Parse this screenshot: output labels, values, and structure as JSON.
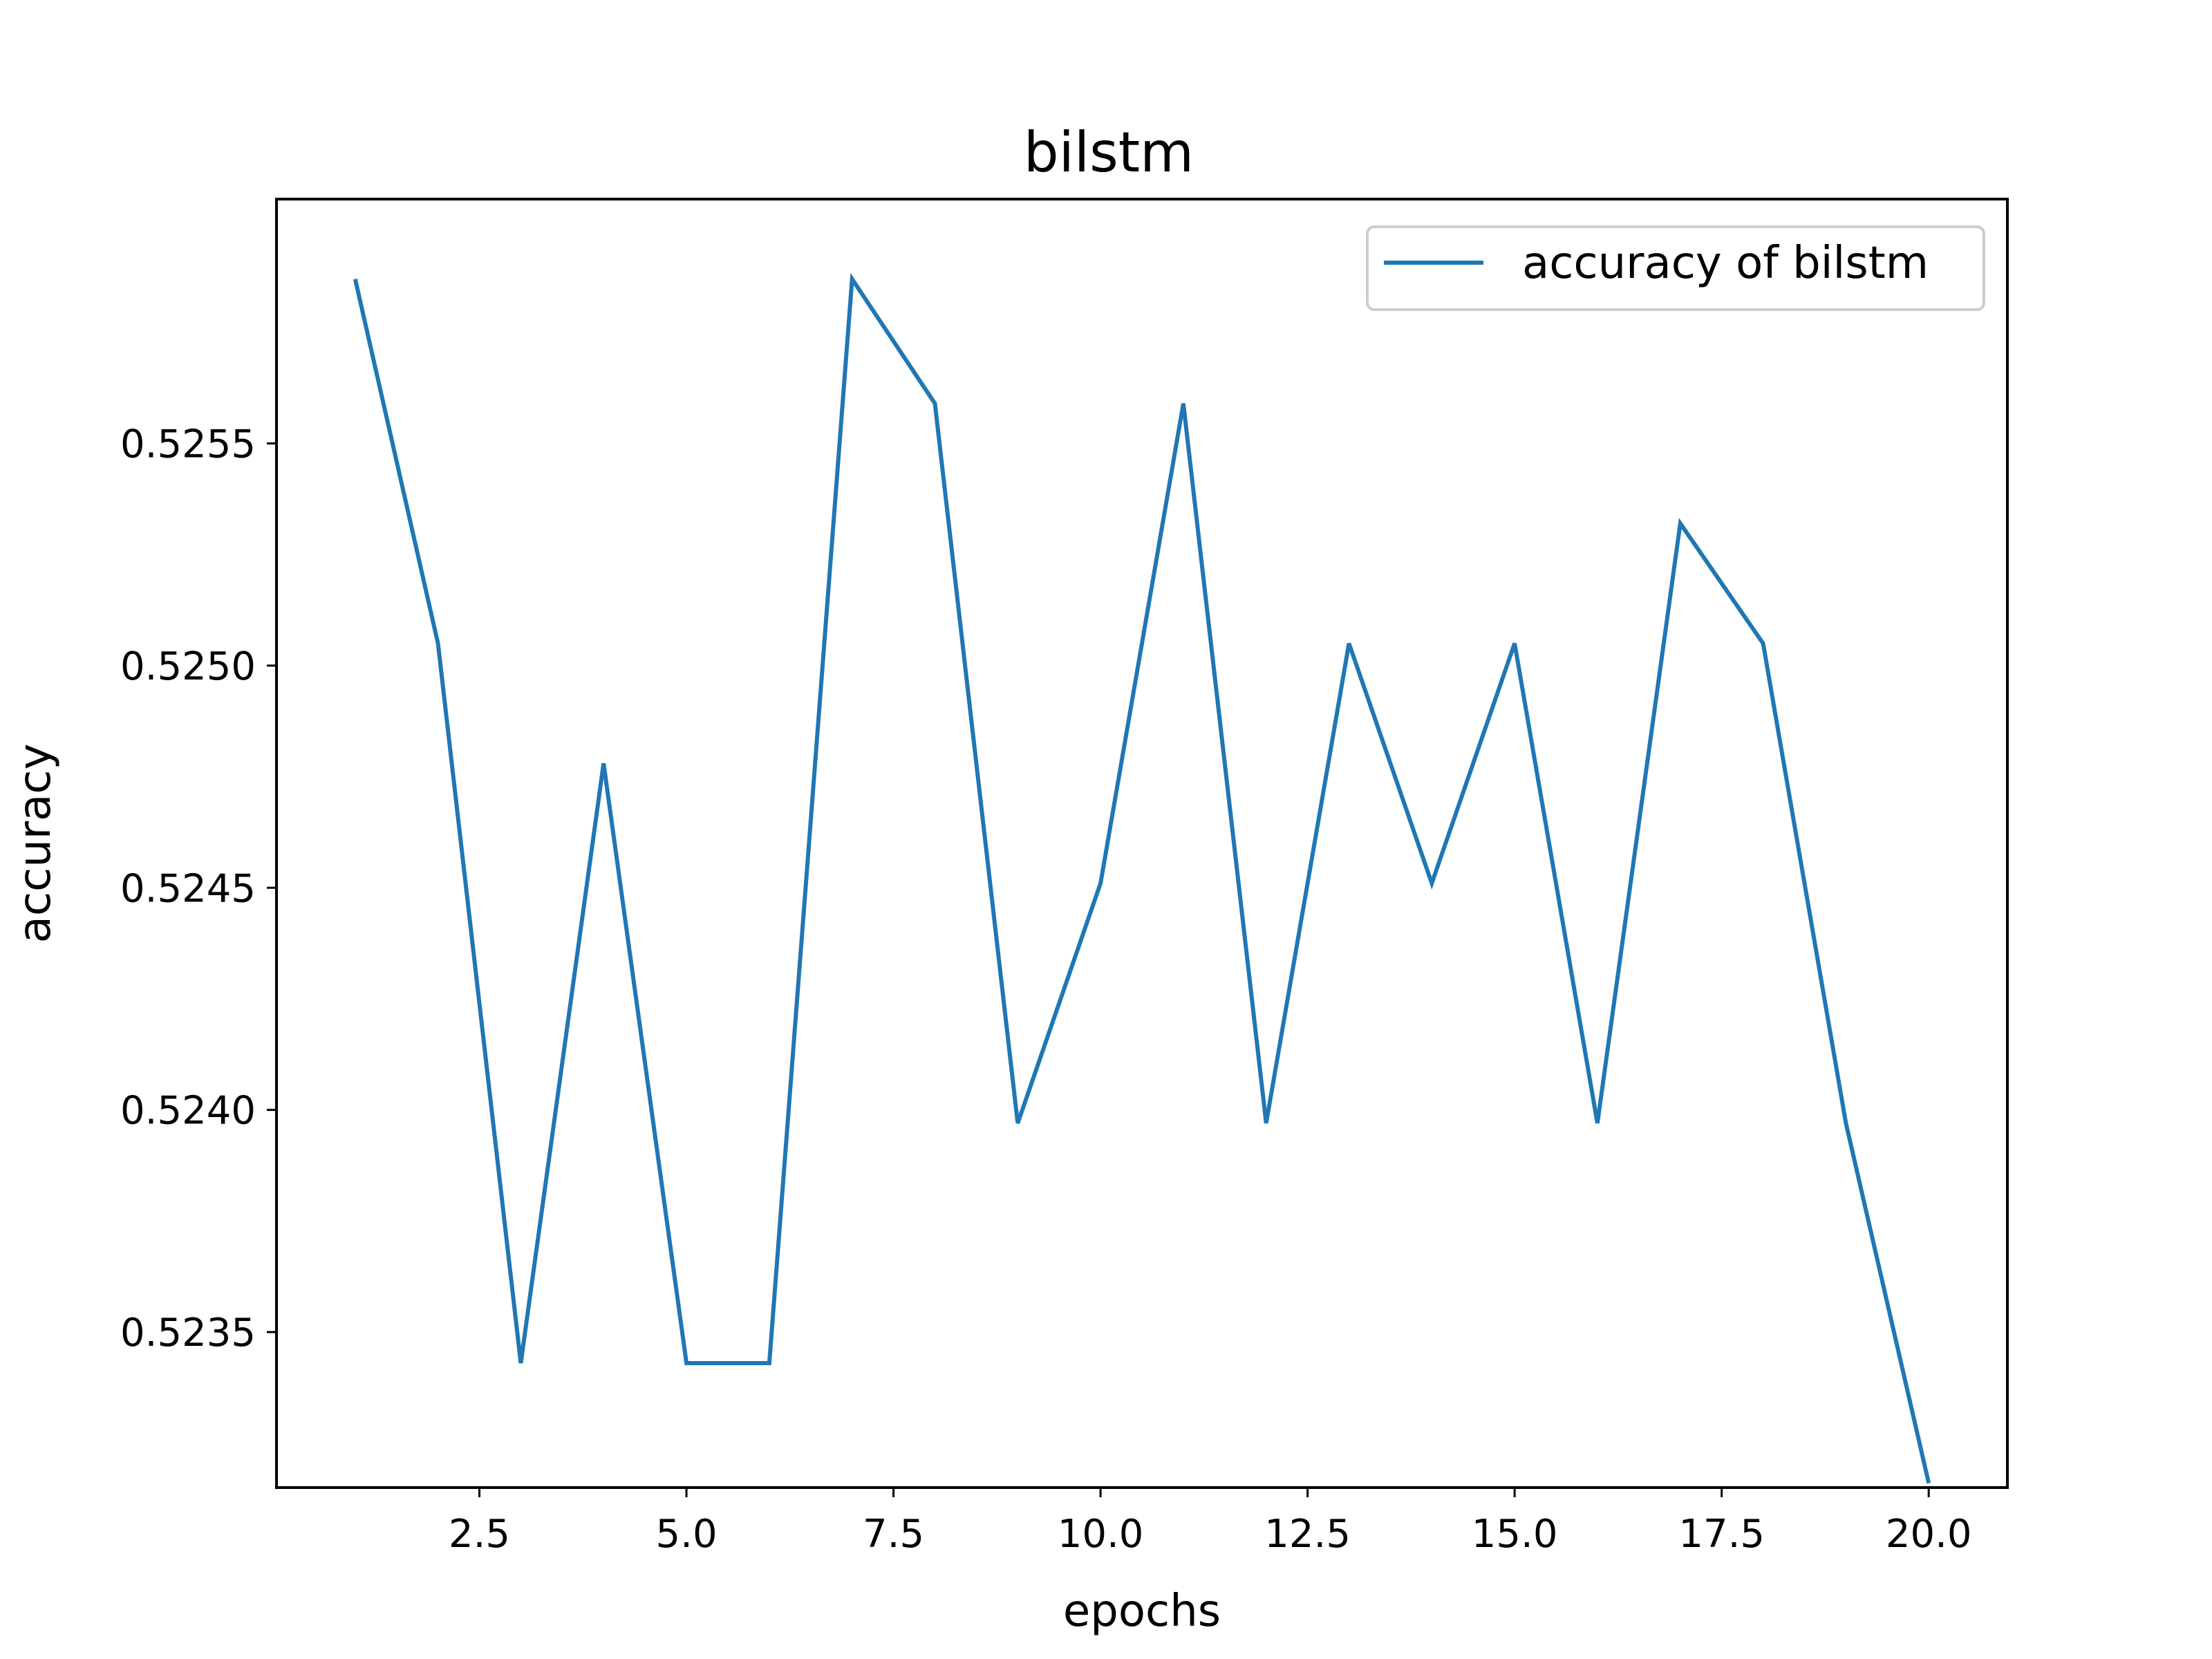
{
  "chart_data": {
    "type": "line",
    "title": "bilstm",
    "xlabel": "epochs",
    "ylabel": "accuracy",
    "xlim": [
      0.05,
      20.95
    ],
    "ylim": [
      0.52315,
      0.52605
    ],
    "x_ticks": [
      2.5,
      5.0,
      7.5,
      10.0,
      12.5,
      15.0,
      17.5,
      20.0
    ],
    "x_tick_labels": [
      "2.5",
      "5.0",
      "7.5",
      "10.0",
      "12.5",
      "15.0",
      "17.5",
      "20.0"
    ],
    "y_ticks": [
      0.5235,
      0.524,
      0.5245,
      0.525,
      0.5255
    ],
    "y_tick_labels": [
      "0.5235",
      "0.5240",
      "0.5245",
      "0.5250",
      "0.5255"
    ],
    "grid": false,
    "legend_position": "top-right",
    "series": [
      {
        "name": "accuracy of bilstm",
        "color": "#1f77b4",
        "x": [
          1,
          2,
          3,
          4,
          5,
          6,
          7,
          8,
          9,
          10,
          11,
          12,
          13,
          14,
          15,
          16,
          17,
          18,
          19,
          20
        ],
        "y": [
          0.52587,
          0.52505,
          0.52343,
          0.52478,
          0.52343,
          0.52343,
          0.52587,
          0.52559,
          0.52397,
          0.52451,
          0.52559,
          0.52397,
          0.52505,
          0.52451,
          0.52505,
          0.52397,
          0.52532,
          0.52505,
          0.52397,
          0.52316
        ]
      }
    ]
  }
}
